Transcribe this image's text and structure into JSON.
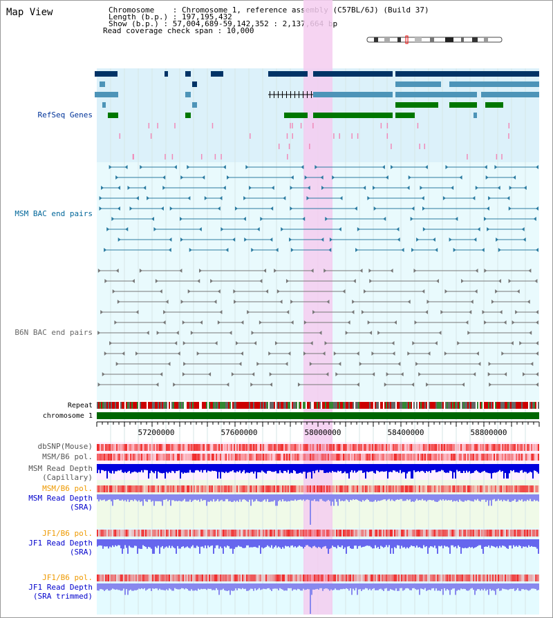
{
  "title": "Map View",
  "info": {
    "chromosome": "Chromosome    : Chromosome 1, reference assembly (C57BL/6J) (Build 37)",
    "length": "Length (b.p.) : 197,195,432",
    "show": "Show (b.p.) : 57,004,689-59,142,352 : 2,137,664 bp",
    "coverage": "Read coverage check span : 10,000"
  },
  "tracks": {
    "refseq": "RefSeq Genes",
    "msm_bac": "MSM BAC end pairs",
    "b6n_bac": "B6N BAC end pairs",
    "repeat": "Repeat",
    "chromosome": "chromosome 1",
    "dbsnp": "dbSNP(Mouse)",
    "msm_b6_pol_1": "MSM/B6 pol.",
    "msm_depth_cap_1": "MSM Read Depth",
    "msm_depth_cap_2": "(Capillary)",
    "msm_b6_pol_2": "MSM/B6 pol.",
    "msm_depth_sra_1": "MSM Read Depth",
    "msm_depth_sra_2": "(SRA)",
    "jf1_b6_pol_1": "JF1/B6 pol.",
    "jf1_depth_sra_1": "JF1 Read Depth",
    "jf1_depth_sra_2": "(SRA)",
    "jf1_b6_pol_2": "JF1/B6 pol.",
    "jf1_depth_trim_1": "JF1 Read Depth",
    "jf1_depth_trim_2": "(SRA trimmed)"
  },
  "axis": {
    "ticks": [
      "57200000",
      "57600000",
      "58000000",
      "58400000",
      "58800000"
    ]
  },
  "colors": {
    "refseq_label": "#003399",
    "msm_bac_label": "#006699",
    "b6n_bac_label": "#666666",
    "orange_label": "#ee9900",
    "blue_label": "#0000cc",
    "highlight": "#f4cdf0",
    "refseq_bg": "#dcf1fa",
    "msm_bg": "#e9fafd",
    "chrom_green": "#006600",
    "dark_gene": "#003366",
    "mid_gene": "#4d94b8",
    "green_gene": "#007700"
  }
}
